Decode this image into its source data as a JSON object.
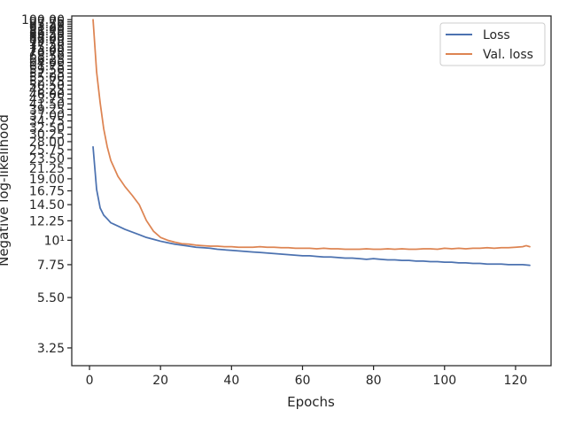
{
  "chart_data": {
    "type": "line",
    "title": "",
    "xlabel": "Epochs",
    "ylabel": "Negative log-likelihood",
    "xlim": [
      -5,
      130
    ],
    "ylim": [
      2.7,
      104
    ],
    "yscale": "log",
    "grid": false,
    "legend_position": "top-right",
    "x_ticks": [
      0,
      20,
      40,
      60,
      80,
      100,
      120
    ],
    "y_ticks": [
      {
        "value": 3.25,
        "label": "3.25"
      },
      {
        "value": 5.5,
        "label": "5.50"
      },
      {
        "value": 7.75,
        "label": "7.75"
      },
      {
        "value": 10,
        "label": "10¹"
      },
      {
        "value": 12.25,
        "label": "12.25"
      },
      {
        "value": 14.5,
        "label": "14.50"
      },
      {
        "value": 16.75,
        "label": "16.75"
      },
      {
        "value": 19,
        "label": "19.00"
      },
      {
        "value": 21.25,
        "label": "21.25"
      },
      {
        "value": 23.5,
        "label": "23.50"
      },
      {
        "value": 25.75,
        "label": "25.75"
      },
      {
        "value": 28,
        "label": "28.00"
      },
      {
        "value": 30.25,
        "label": "30.25"
      },
      {
        "value": 32.5,
        "label": "32.50"
      },
      {
        "value": 34.75,
        "label": "34.75"
      },
      {
        "value": 37,
        "label": "37.00"
      },
      {
        "value": 39.25,
        "label": "39.25"
      },
      {
        "value": 41.5,
        "label": "41.50"
      },
      {
        "value": 43.75,
        "label": "43.75"
      },
      {
        "value": 46,
        "label": "46.00"
      },
      {
        "value": 48.25,
        "label": "48.25"
      },
      {
        "value": 50.5,
        "label": "50.50"
      },
      {
        "value": 52.75,
        "label": "52.75"
      },
      {
        "value": 55,
        "label": "55.00"
      },
      {
        "value": 57.25,
        "label": "57.25"
      },
      {
        "value": 59.5,
        "label": "59.50"
      },
      {
        "value": 61.75,
        "label": "61.75"
      },
      {
        "value": 64,
        "label": "64.00"
      },
      {
        "value": 66.25,
        "label": "66.25"
      },
      {
        "value": 68.5,
        "label": "68.50"
      },
      {
        "value": 70.75,
        "label": "70.75"
      },
      {
        "value": 73,
        "label": "73.00"
      },
      {
        "value": 75.25,
        "label": "75.25"
      },
      {
        "value": 77.5,
        "label": "77.50"
      },
      {
        "value": 79.75,
        "label": "79.75"
      },
      {
        "value": 82,
        "label": "82.00"
      },
      {
        "value": 84.25,
        "label": "84.25"
      },
      {
        "value": 86.5,
        "label": "86.50"
      },
      {
        "value": 88.75,
        "label": "88.75"
      },
      {
        "value": 91,
        "label": "91.00"
      },
      {
        "value": 93.25,
        "label": "93.25"
      },
      {
        "value": 95.5,
        "label": "95.50"
      },
      {
        "value": 97.75,
        "label": "97.75"
      },
      {
        "value": 100,
        "label": "100.00"
      }
    ],
    "series": [
      {
        "name": "Loss",
        "color": "#4c72b0",
        "x": [
          1,
          2,
          3,
          4,
          5,
          6,
          8,
          10,
          12,
          14,
          16,
          18,
          20,
          22,
          24,
          26,
          28,
          30,
          32,
          34,
          36,
          38,
          40,
          42,
          44,
          46,
          48,
          50,
          52,
          54,
          56,
          58,
          60,
          62,
          64,
          66,
          68,
          70,
          72,
          74,
          76,
          78,
          80,
          82,
          84,
          86,
          88,
          90,
          92,
          94,
          96,
          98,
          100,
          102,
          104,
          106,
          108,
          110,
          112,
          114,
          116,
          118,
          120,
          122,
          124
        ],
        "y": [
          26.5,
          17.0,
          14.0,
          13.0,
          12.5,
          12.0,
          11.6,
          11.2,
          10.9,
          10.6,
          10.3,
          10.1,
          9.9,
          9.75,
          9.6,
          9.5,
          9.4,
          9.3,
          9.25,
          9.2,
          9.1,
          9.05,
          9.0,
          8.95,
          8.9,
          8.85,
          8.8,
          8.75,
          8.7,
          8.65,
          8.6,
          8.55,
          8.5,
          8.5,
          8.45,
          8.4,
          8.4,
          8.35,
          8.3,
          8.3,
          8.25,
          8.2,
          8.25,
          8.2,
          8.15,
          8.15,
          8.1,
          8.1,
          8.05,
          8.05,
          8.0,
          8.0,
          7.95,
          7.95,
          7.9,
          7.9,
          7.85,
          7.85,
          7.8,
          7.8,
          7.8,
          7.75,
          7.75,
          7.75,
          7.7
        ]
      },
      {
        "name": "Val. loss",
        "color": "#dd8452",
        "x": [
          1,
          2,
          3,
          4,
          5,
          6,
          8,
          10,
          12,
          14,
          16,
          18,
          20,
          22,
          24,
          26,
          28,
          30,
          32,
          34,
          36,
          38,
          40,
          42,
          44,
          46,
          48,
          50,
          52,
          54,
          56,
          58,
          60,
          62,
          64,
          66,
          68,
          70,
          72,
          74,
          76,
          78,
          80,
          82,
          84,
          86,
          88,
          90,
          92,
          94,
          96,
          98,
          100,
          102,
          104,
          106,
          108,
          110,
          112,
          114,
          116,
          118,
          120,
          122,
          123,
          124
        ],
        "y": [
          100,
          58,
          42,
          32,
          26.5,
          23,
          19.5,
          17.5,
          16.0,
          14.5,
          12.3,
          11.0,
          10.3,
          10.0,
          9.8,
          9.65,
          9.6,
          9.5,
          9.45,
          9.4,
          9.4,
          9.35,
          9.35,
          9.3,
          9.3,
          9.3,
          9.35,
          9.3,
          9.3,
          9.25,
          9.25,
          9.2,
          9.2,
          9.2,
          9.15,
          9.2,
          9.15,
          9.15,
          9.1,
          9.1,
          9.1,
          9.15,
          9.1,
          9.1,
          9.15,
          9.1,
          9.15,
          9.1,
          9.1,
          9.15,
          9.15,
          9.1,
          9.2,
          9.15,
          9.2,
          9.15,
          9.2,
          9.2,
          9.25,
          9.2,
          9.25,
          9.25,
          9.3,
          9.35,
          9.45,
          9.35
        ]
      }
    ]
  }
}
